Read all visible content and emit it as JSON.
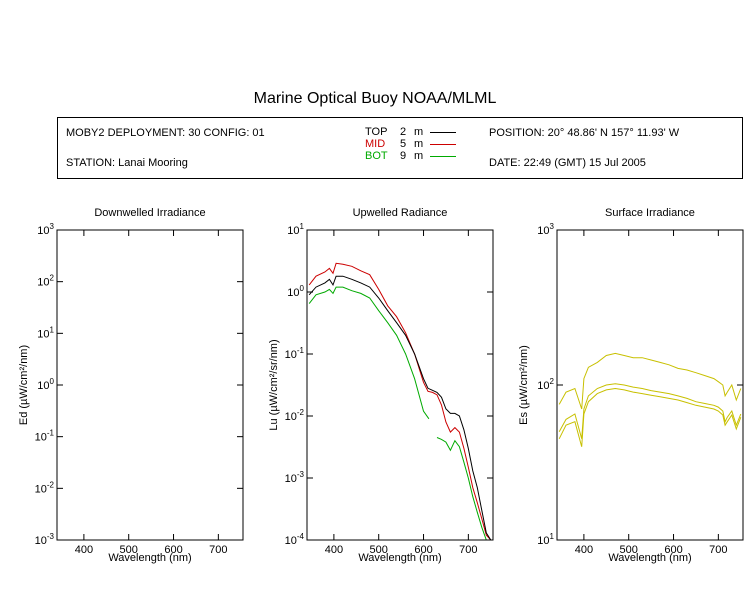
{
  "title": "Marine Optical Buoy NOAA/MLML",
  "info": {
    "deployment": "MOBY2 DEPLOYMENT: 30 CONFIG: 01",
    "station": "STATION: Lanai Mooring",
    "position": "POSITION: 20° 48.86' N   157° 11.93' W",
    "date": "DATE: 22:49 (GMT) 15 Jul 2005",
    "legend": [
      {
        "label": "TOP",
        "depth": "2",
        "unit": "m",
        "color": "#000000"
      },
      {
        "label": "MID",
        "depth": "5",
        "unit": "m",
        "color": "#cc0000"
      },
      {
        "label": "BOT",
        "depth": "9",
        "unit": "m",
        "color": "#00aa00"
      }
    ]
  },
  "chart_data": [
    {
      "type": "line",
      "title": "Downwelled Irradiance",
      "xlabel": "Wavelength (nm)",
      "ylabel": "Ed  (µW/cm²/nm)",
      "xlim": [
        340,
        755
      ],
      "ylim": [
        0.001,
        1000
      ],
      "yscale": "log",
      "xticks": [
        400,
        500,
        600,
        700
      ],
      "yticks": [
        {
          "base": "10",
          "exp": "-3"
        },
        {
          "base": "10",
          "exp": "-2"
        },
        {
          "base": "10",
          "exp": "-1"
        },
        {
          "base": "10",
          "exp": "0"
        },
        {
          "base": "10",
          "exp": "1"
        },
        {
          "base": "10",
          "exp": "2"
        },
        {
          "base": "10",
          "exp": "3"
        }
      ],
      "series": []
    },
    {
      "type": "line",
      "title": "Upwelled Radiance",
      "xlabel": "Wavelength (nm)",
      "ylabel": "Lu  (µW/cm²/sr/nm)",
      "xlim": [
        340,
        755
      ],
      "ylim": [
        0.0001,
        10
      ],
      "yscale": "log",
      "xticks": [
        400,
        500,
        600,
        700
      ],
      "yticks": [
        {
          "base": "10",
          "exp": "-4"
        },
        {
          "base": "10",
          "exp": "-3"
        },
        {
          "base": "10",
          "exp": "-2"
        },
        {
          "base": "10",
          "exp": "-1"
        },
        {
          "base": "10",
          "exp": "0"
        },
        {
          "base": "10",
          "exp": "1"
        }
      ],
      "series": [
        {
          "color": "#cc0000",
          "x": [
            345,
            360,
            380,
            390,
            398,
            405,
            420,
            440,
            460,
            480,
            500,
            520,
            540,
            560,
            580,
            600,
            610,
            620,
            630,
            640,
            650,
            660,
            670,
            680,
            690,
            700,
            710,
            720,
            730,
            740,
            750
          ],
          "y": [
            1.3,
            1.8,
            2.1,
            2.4,
            2.0,
            2.9,
            2.8,
            2.6,
            2.2,
            1.9,
            1.1,
            0.6,
            0.4,
            0.22,
            0.1,
            0.035,
            0.025,
            0.024,
            0.022,
            0.015,
            0.008,
            0.0055,
            0.0065,
            0.0055,
            0.003,
            0.0015,
            0.0007,
            0.0004,
            0.00022,
            0.00012,
            0.0001
          ]
        },
        {
          "color": "#000000",
          "x": [
            345,
            360,
            380,
            390,
            398,
            405,
            420,
            440,
            460,
            480,
            500,
            520,
            540,
            560,
            580,
            600,
            610,
            620,
            630,
            640,
            650,
            660,
            670,
            680,
            690,
            700,
            710,
            720,
            730,
            740,
            750
          ],
          "y": [
            0.9,
            1.2,
            1.4,
            1.6,
            1.3,
            1.8,
            1.8,
            1.6,
            1.4,
            1.2,
            0.8,
            0.5,
            0.32,
            0.2,
            0.1,
            0.04,
            0.028,
            0.026,
            0.024,
            0.02,
            0.013,
            0.011,
            0.011,
            0.01,
            0.006,
            0.003,
            0.0013,
            0.0007,
            0.0003,
            0.00013,
            0.0001
          ]
        },
        {
          "color": "#00aa00",
          "x": [
            345,
            360,
            380,
            390,
            398,
            405,
            420,
            440,
            460,
            480,
            500,
            520,
            540,
            560,
            580,
            600,
            612
          ],
          "y": [
            0.65,
            0.9,
            1.0,
            1.1,
            0.95,
            1.2,
            1.2,
            1.05,
            0.95,
            0.8,
            0.5,
            0.32,
            0.2,
            0.1,
            0.04,
            0.012,
            0.009
          ]
        },
        {
          "color": "#00aa00",
          "x": [
            630,
            640,
            650,
            660,
            670,
            680,
            690,
            700,
            710,
            720,
            730,
            740,
            750
          ],
          "y": [
            0.0045,
            0.0042,
            0.0038,
            0.0028,
            0.004,
            0.0032,
            0.0018,
            0.001,
            0.0005,
            0.00028,
            0.00016,
            0.0001,
            0.0001
          ]
        }
      ]
    },
    {
      "type": "line",
      "title": "Surface Irradiance",
      "xlabel": "Wavelength (nm)",
      "ylabel": "Es  (µW/cm²/nm)",
      "xlim": [
        340,
        755
      ],
      "ylim": [
        10,
        1000
      ],
      "yscale": "log",
      "xticks": [
        400,
        500,
        600,
        700
      ],
      "yticks": [
        {
          "base": "10",
          "exp": "1"
        },
        {
          "base": "10",
          "exp": "2"
        },
        {
          "base": "10",
          "exp": "3"
        }
      ],
      "series": [
        {
          "color": "#c8c000",
          "x": [
            345,
            360,
            380,
            395,
            400,
            410,
            430,
            450,
            470,
            490,
            510,
            530,
            550,
            570,
            590,
            610,
            630,
            650,
            670,
            690,
            700,
            710,
            715,
            720,
            730,
            740,
            750
          ],
          "y": [
            75,
            90,
            95,
            70,
            110,
            130,
            140,
            155,
            160,
            155,
            150,
            150,
            145,
            140,
            135,
            128,
            125,
            120,
            115,
            110,
            105,
            100,
            85,
            90,
            100,
            80,
            95
          ]
        },
        {
          "color": "#c8c000",
          "x": [
            345,
            360,
            380,
            395,
            400,
            410,
            430,
            450,
            470,
            490,
            510,
            530,
            550,
            570,
            590,
            610,
            630,
            650,
            670,
            690,
            700,
            710,
            715,
            720,
            730,
            740,
            750
          ],
          "y": [
            50,
            60,
            65,
            45,
            70,
            85,
            95,
            100,
            102,
            100,
            97,
            95,
            92,
            90,
            88,
            85,
            82,
            78,
            76,
            74,
            72,
            68,
            58,
            62,
            68,
            55,
            65
          ]
        },
        {
          "color": "#c8c000",
          "x": [
            345,
            360,
            380,
            395,
            400,
            410,
            430,
            450,
            470,
            490,
            510,
            530,
            550,
            570,
            590,
            610,
            630,
            650,
            670,
            690,
            700,
            710,
            715,
            720,
            730,
            740,
            750
          ],
          "y": [
            45,
            55,
            58,
            40,
            65,
            78,
            88,
            93,
            95,
            93,
            90,
            88,
            86,
            84,
            82,
            80,
            77,
            74,
            72,
            70,
            68,
            64,
            55,
            58,
            64,
            52,
            62
          ]
        }
      ]
    }
  ]
}
